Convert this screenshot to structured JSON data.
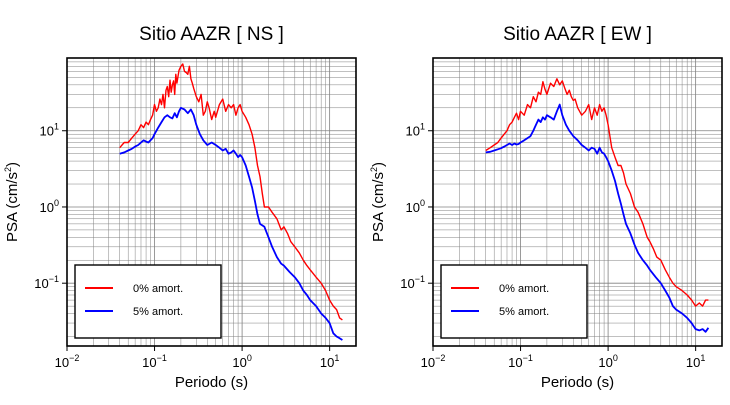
{
  "chart_data": [
    {
      "type": "line",
      "title": "Sitio AAZR [ NS ]",
      "xlabel": "Periodo (s)",
      "ylabel_main": "PSA (cm/s",
      "ylabel_sup": "2",
      "ylabel_end": ")",
      "xscale": "log",
      "yscale": "log",
      "xlim": [
        0.01,
        20
      ],
      "ylim": [
        0.015,
        90
      ],
      "grid": true,
      "legend_position": "bottom-left",
      "xticks": [
        {
          "base": "10",
          "exp": "−2"
        },
        {
          "base": "10",
          "exp": "−1"
        },
        {
          "base": "10",
          "exp": "0"
        },
        {
          "base": "10",
          "exp": "1"
        }
      ],
      "yticks": [
        {
          "base": "10",
          "exp": "−1"
        },
        {
          "base": "10",
          "exp": "0"
        },
        {
          "base": "10",
          "exp": "1"
        }
      ],
      "series": [
        {
          "name": "0% amort.",
          "color": "#ff0000",
          "x": [
            0.04,
            0.045,
            0.05,
            0.055,
            0.06,
            0.065,
            0.07,
            0.075,
            0.08,
            0.085,
            0.09,
            0.095,
            0.1,
            0.105,
            0.11,
            0.115,
            0.12,
            0.125,
            0.13,
            0.135,
            0.14,
            0.145,
            0.15,
            0.155,
            0.16,
            0.165,
            0.17,
            0.175,
            0.18,
            0.19,
            0.2,
            0.21,
            0.22,
            0.23,
            0.24,
            0.25,
            0.26,
            0.27,
            0.28,
            0.3,
            0.32,
            0.34,
            0.36,
            0.38,
            0.4,
            0.42,
            0.45,
            0.48,
            0.5,
            0.55,
            0.6,
            0.65,
            0.7,
            0.75,
            0.8,
            0.85,
            0.9,
            0.95,
            1.0,
            1.1,
            1.2,
            1.3,
            1.4,
            1.5,
            1.6,
            1.7,
            1.8,
            2.0,
            2.2,
            2.5,
            2.8,
            3.0,
            3.3,
            3.6,
            4.0,
            4.5,
            5.0,
            5.5,
            6.0,
            7.0,
            8.0,
            9.0,
            10,
            11,
            12,
            13,
            14
          ],
          "y": [
            6,
            7,
            7,
            8,
            9,
            10,
            12,
            11,
            13,
            12,
            14,
            16,
            22,
            18,
            20,
            26,
            22,
            30,
            20,
            34,
            38,
            28,
            46,
            32,
            40,
            45,
            30,
            55,
            42,
            62,
            70,
            75,
            60,
            58,
            55,
            70,
            48,
            42,
            36,
            28,
            24,
            30,
            16,
            18,
            24,
            20,
            14,
            18,
            15,
            22,
            26,
            18,
            22,
            20,
            22,
            16,
            20,
            22,
            18,
            15,
            12,
            9,
            6,
            3.5,
            2.5,
            1.5,
            1.0,
            1.0,
            0.85,
            0.7,
            0.5,
            0.55,
            0.45,
            0.35,
            0.3,
            0.25,
            0.2,
            0.17,
            0.15,
            0.12,
            0.1,
            0.08,
            0.06,
            0.05,
            0.045,
            0.035,
            0.033
          ]
        },
        {
          "name": "5% amort.",
          "color": "#0000ff",
          "x": [
            0.04,
            0.045,
            0.05,
            0.055,
            0.06,
            0.065,
            0.07,
            0.075,
            0.08,
            0.085,
            0.09,
            0.095,
            0.1,
            0.11,
            0.12,
            0.13,
            0.14,
            0.15,
            0.16,
            0.17,
            0.18,
            0.19,
            0.2,
            0.22,
            0.24,
            0.26,
            0.28,
            0.3,
            0.33,
            0.36,
            0.4,
            0.45,
            0.5,
            0.55,
            0.6,
            0.65,
            0.7,
            0.75,
            0.8,
            0.85,
            0.9,
            0.95,
            1.0,
            1.1,
            1.2,
            1.3,
            1.4,
            1.5,
            1.6,
            1.8,
            2.0,
            2.2,
            2.5,
            2.8,
            3.0,
            3.5,
            4.0,
            4.5,
            5.0,
            5.5,
            6.0,
            7.0,
            8.0,
            9.0,
            10,
            11,
            12,
            13,
            14
          ],
          "y": [
            5,
            5.2,
            5.5,
            5.8,
            6.2,
            6.5,
            7,
            7.5,
            7.2,
            7,
            7.5,
            8,
            9,
            11,
            13,
            15,
            16,
            15,
            14.5,
            17,
            15,
            18,
            20,
            19,
            17,
            19,
            16,
            12,
            9,
            7.5,
            6.5,
            7,
            6.5,
            6,
            5.5,
            5.8,
            5,
            5.2,
            5.5,
            5,
            4.5,
            4.8,
            4.5,
            3.5,
            2.5,
            1.8,
            1.2,
            0.8,
            0.6,
            0.55,
            0.4,
            0.3,
            0.22,
            0.18,
            0.17,
            0.14,
            0.12,
            0.1,
            0.08,
            0.07,
            0.06,
            0.05,
            0.04,
            0.035,
            0.03,
            0.022,
            0.02,
            0.019,
            0.018
          ]
        }
      ]
    },
    {
      "type": "line",
      "title": "Sitio AAZR [ EW ]",
      "xlabel": "Periodo (s)",
      "ylabel_main": "PSA (cm/s",
      "ylabel_sup": "2",
      "ylabel_end": ")",
      "xscale": "log",
      "yscale": "log",
      "xlim": [
        0.01,
        20
      ],
      "ylim": [
        0.015,
        90
      ],
      "grid": true,
      "legend_position": "bottom-left",
      "xticks": [
        {
          "base": "10",
          "exp": "−2"
        },
        {
          "base": "10",
          "exp": "−1"
        },
        {
          "base": "10",
          "exp": "0"
        },
        {
          "base": "10",
          "exp": "1"
        }
      ],
      "yticks": [
        {
          "base": "10",
          "exp": "−1"
        },
        {
          "base": "10",
          "exp": "0"
        },
        {
          "base": "10",
          "exp": "1"
        }
      ],
      "series": [
        {
          "name": "0% amort.",
          "color": "#ff0000",
          "x": [
            0.04,
            0.045,
            0.05,
            0.055,
            0.06,
            0.065,
            0.07,
            0.075,
            0.08,
            0.085,
            0.09,
            0.095,
            0.1,
            0.11,
            0.12,
            0.13,
            0.14,
            0.15,
            0.16,
            0.17,
            0.18,
            0.19,
            0.2,
            0.22,
            0.24,
            0.26,
            0.28,
            0.3,
            0.32,
            0.34,
            0.36,
            0.38,
            0.4,
            0.42,
            0.45,
            0.5,
            0.55,
            0.6,
            0.65,
            0.7,
            0.75,
            0.8,
            0.85,
            0.9,
            0.95,
            1.0,
            1.1,
            1.2,
            1.3,
            1.4,
            1.5,
            1.6,
            1.8,
            2.0,
            2.2,
            2.5,
            2.8,
            3.0,
            3.3,
            3.6,
            4.0,
            4.5,
            5.0,
            5.5,
            6.0,
            7.0,
            8.0,
            9.0,
            10,
            11,
            12,
            13,
            14
          ],
          "y": [
            5.5,
            6,
            6.5,
            7,
            8,
            9,
            10,
            12,
            13,
            15,
            17,
            14,
            18,
            16,
            22,
            20,
            28,
            24,
            32,
            30,
            44,
            35,
            30,
            42,
            38,
            48,
            40,
            45,
            36,
            30,
            34,
            28,
            25,
            26,
            20,
            16,
            18,
            22,
            14,
            20,
            16,
            22,
            18,
            20,
            16,
            12,
            6,
            4.5,
            3.5,
            3.5,
            2.8,
            2,
            1.5,
            1.0,
            0.85,
            0.6,
            0.4,
            0.35,
            0.28,
            0.22,
            0.2,
            0.15,
            0.12,
            0.1,
            0.09,
            0.08,
            0.07,
            0.06,
            0.05,
            0.055,
            0.05,
            0.06,
            0.06
          ]
        },
        {
          "name": "5% amort.",
          "color": "#0000ff",
          "x": [
            0.04,
            0.045,
            0.05,
            0.055,
            0.06,
            0.065,
            0.07,
            0.075,
            0.08,
            0.085,
            0.09,
            0.095,
            0.1,
            0.11,
            0.12,
            0.13,
            0.14,
            0.15,
            0.16,
            0.17,
            0.18,
            0.19,
            0.2,
            0.22,
            0.24,
            0.26,
            0.28,
            0.3,
            0.33,
            0.36,
            0.4,
            0.45,
            0.5,
            0.55,
            0.6,
            0.65,
            0.7,
            0.75,
            0.8,
            0.85,
            0.9,
            0.95,
            1.0,
            1.1,
            1.2,
            1.3,
            1.4,
            1.5,
            1.6,
            1.8,
            2.0,
            2.2,
            2.5,
            2.8,
            3.0,
            3.5,
            4.0,
            4.5,
            5.0,
            5.5,
            6.0,
            7.0,
            8.0,
            9.0,
            10,
            11,
            12,
            13,
            14
          ],
          "y": [
            5.2,
            5.3,
            5.5,
            5.7,
            5.9,
            6.2,
            6.5,
            6.8,
            6.5,
            6.8,
            6.6,
            6.7,
            7,
            7.5,
            8,
            8.5,
            10,
            12,
            14,
            13,
            15,
            14,
            16,
            15,
            14,
            18,
            22,
            16,
            12,
            10,
            8.5,
            7.5,
            6.5,
            6,
            5.5,
            6,
            5.8,
            5,
            6,
            5.2,
            5,
            4.5,
            4,
            3,
            2.2,
            1.5,
            1.1,
            0.8,
            0.6,
            0.45,
            0.32,
            0.25,
            0.2,
            0.17,
            0.15,
            0.12,
            0.1,
            0.08,
            0.065,
            0.05,
            0.045,
            0.04,
            0.035,
            0.03,
            0.025,
            0.024,
            0.025,
            0.023,
            0.026
          ]
        }
      ]
    }
  ]
}
